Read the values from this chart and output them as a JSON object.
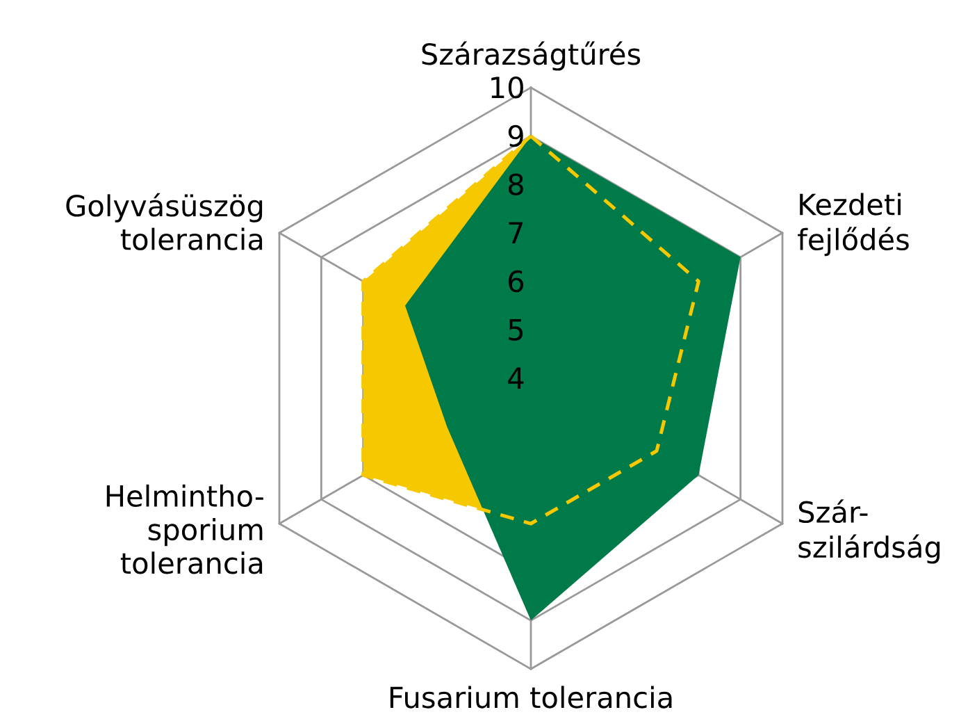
{
  "chart_data": {
    "type": "radar",
    "categories": [
      "Szárazságtűrés",
      "Kezdeti\nfejlődés",
      "Szár-\nszilárdság",
      "Fusarium tolerancia",
      "Helmintho-\nsporium\ntolerancia",
      "Golyvásüszög\ntolerancia"
    ],
    "ylim": [
      4,
      10
    ],
    "yticks": [
      4,
      5,
      6,
      7,
      8,
      9,
      10
    ],
    "grid": true,
    "series": [
      {
        "color": "#f5c800",
        "values": [
          9,
          8,
          7,
          7,
          8,
          8
        ],
        "line_style": "dashed"
      },
      {
        "color": "#007a48",
        "values": [
          9,
          9,
          8,
          9,
          6,
          7
        ]
      }
    ]
  }
}
